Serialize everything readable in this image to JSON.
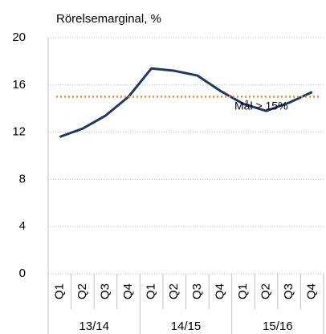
{
  "chart_data": {
    "type": "line",
    "title": "Rörelsemarginal, %",
    "categories": [
      "Q1",
      "Q2",
      "Q3",
      "Q4",
      "Q1",
      "Q2",
      "Q3",
      "Q4",
      "Q1",
      "Q2",
      "Q3",
      "Q4"
    ],
    "category_groups": [
      "13/14",
      "14/15",
      "15/16"
    ],
    "series": [
      {
        "name": "Rörelsemarginal",
        "color": "#1f3864",
        "values": [
          11.6,
          12.3,
          13.4,
          15.0,
          17.4,
          17.2,
          16.8,
          15.5,
          14.4,
          13.8,
          14.5,
          15.4
        ]
      }
    ],
    "ylim": [
      0,
      20
    ],
    "yticks": [
      0,
      4,
      8,
      12,
      16,
      20
    ],
    "grid": true,
    "target": {
      "value": 15,
      "label": "Mål > 15%",
      "color": "#f08c2c"
    }
  }
}
